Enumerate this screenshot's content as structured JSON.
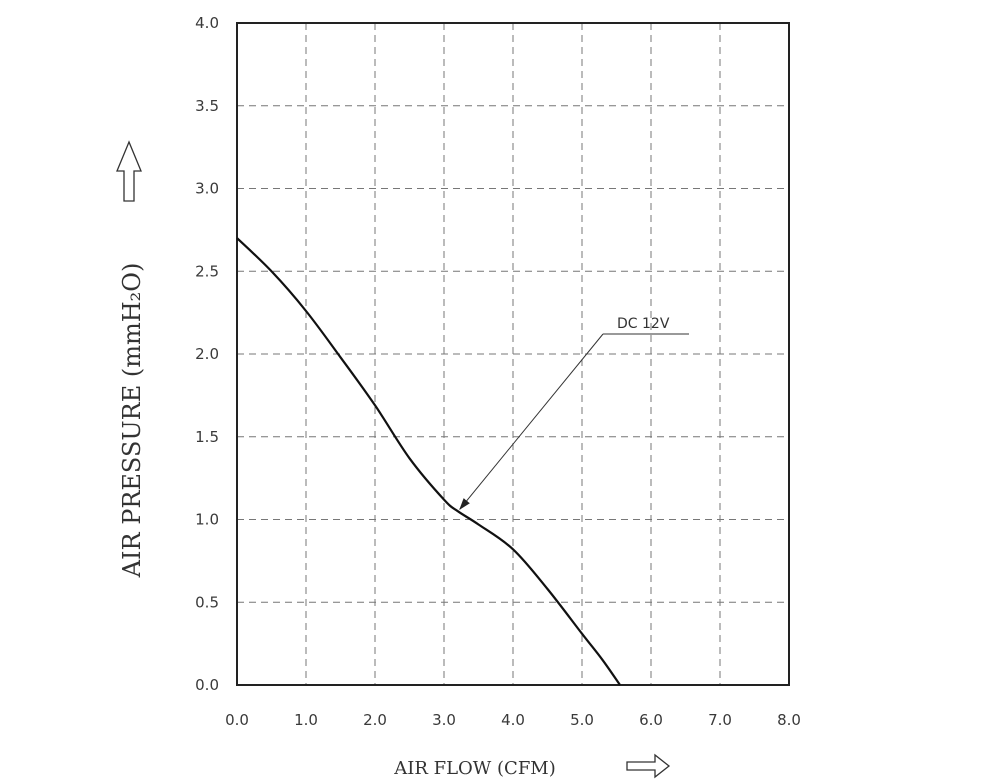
{
  "chart_data": {
    "type": "line",
    "xlabel": "AIR FLOW (CFM)",
    "ylabel": "AIR PRESSURE (mmH₂O)",
    "xlim": [
      0,
      8
    ],
    "ylim": [
      0,
      4
    ],
    "x_ticks": [
      "0.0",
      "1.0",
      "2.0",
      "3.0",
      "4.0",
      "5.0",
      "6.0",
      "7.0",
      "8.0"
    ],
    "y_ticks": [
      "0.0",
      "0.5",
      "1.0",
      "1.5",
      "2.0",
      "2.5",
      "3.0",
      "3.5",
      "4.0"
    ],
    "grid": true,
    "series": [
      {
        "name": "DC 12V",
        "x": [
          0.0,
          0.5,
          1.0,
          1.5,
          2.0,
          2.5,
          3.0,
          3.2,
          3.5,
          4.0,
          4.5,
          5.0,
          5.3,
          5.55
        ],
        "y": [
          2.7,
          2.5,
          2.26,
          1.98,
          1.69,
          1.37,
          1.12,
          1.05,
          0.97,
          0.82,
          0.58,
          0.31,
          0.15,
          0.0
        ]
      }
    ],
    "annotations": [
      {
        "text": "DC 12V",
        "points_to": {
          "x": 3.2,
          "y": 1.05
        }
      }
    ]
  }
}
